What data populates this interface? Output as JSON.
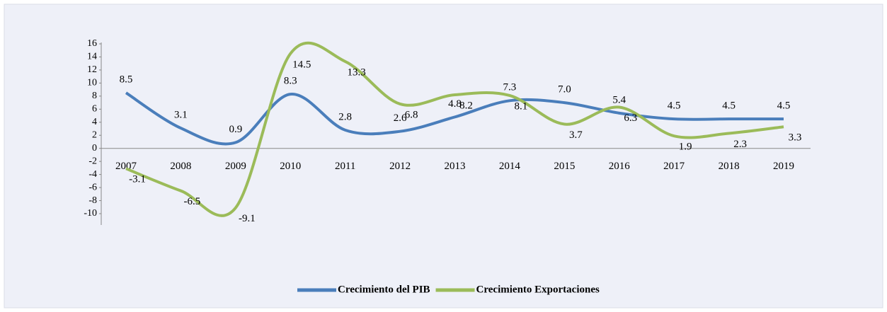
{
  "chart_data": {
    "type": "line",
    "categories": [
      "2007",
      "2008",
      "2009",
      "2010",
      "2011",
      "2012",
      "2013",
      "2014",
      "2015",
      "2016",
      "2017",
      "2018",
      "2019"
    ],
    "series": [
      {
        "name": "Crecimiento del PIB",
        "color": "#4a7ebb",
        "values": [
          8.5,
          3.1,
          0.9,
          8.3,
          2.8,
          2.6,
          4.8,
          7.3,
          7.0,
          5.4,
          4.5,
          4.5,
          4.5
        ],
        "value_labels": [
          "8.5",
          "3.1",
          "0.9",
          "8.3",
          "2.8",
          "2.6",
          "4.8",
          "7.3",
          "7.0",
          "5.4",
          "4.5",
          "4.5",
          "4.5"
        ]
      },
      {
        "name": "Crecimiento Exportaciones",
        "color": "#9bbb59",
        "values": [
          -3.1,
          -6.5,
          -9.1,
          14.5,
          13.3,
          6.8,
          8.2,
          8.1,
          3.7,
          6.3,
          1.9,
          2.3,
          3.3
        ],
        "value_labels": [
          "-3.1",
          "-6.5",
          "-9.1",
          "14.5",
          "13.3",
          "6.8",
          "8.2",
          "8.1",
          "3.7",
          "6.3",
          "1.9",
          "2.3",
          "3.3"
        ]
      }
    ],
    "ylim": [
      -10,
      16
    ],
    "yticks": [
      -10,
      -8,
      -6,
      -4,
      -2,
      0,
      2,
      4,
      6,
      8,
      10,
      12,
      14,
      16
    ],
    "grid": false,
    "legend": "bottom"
  }
}
